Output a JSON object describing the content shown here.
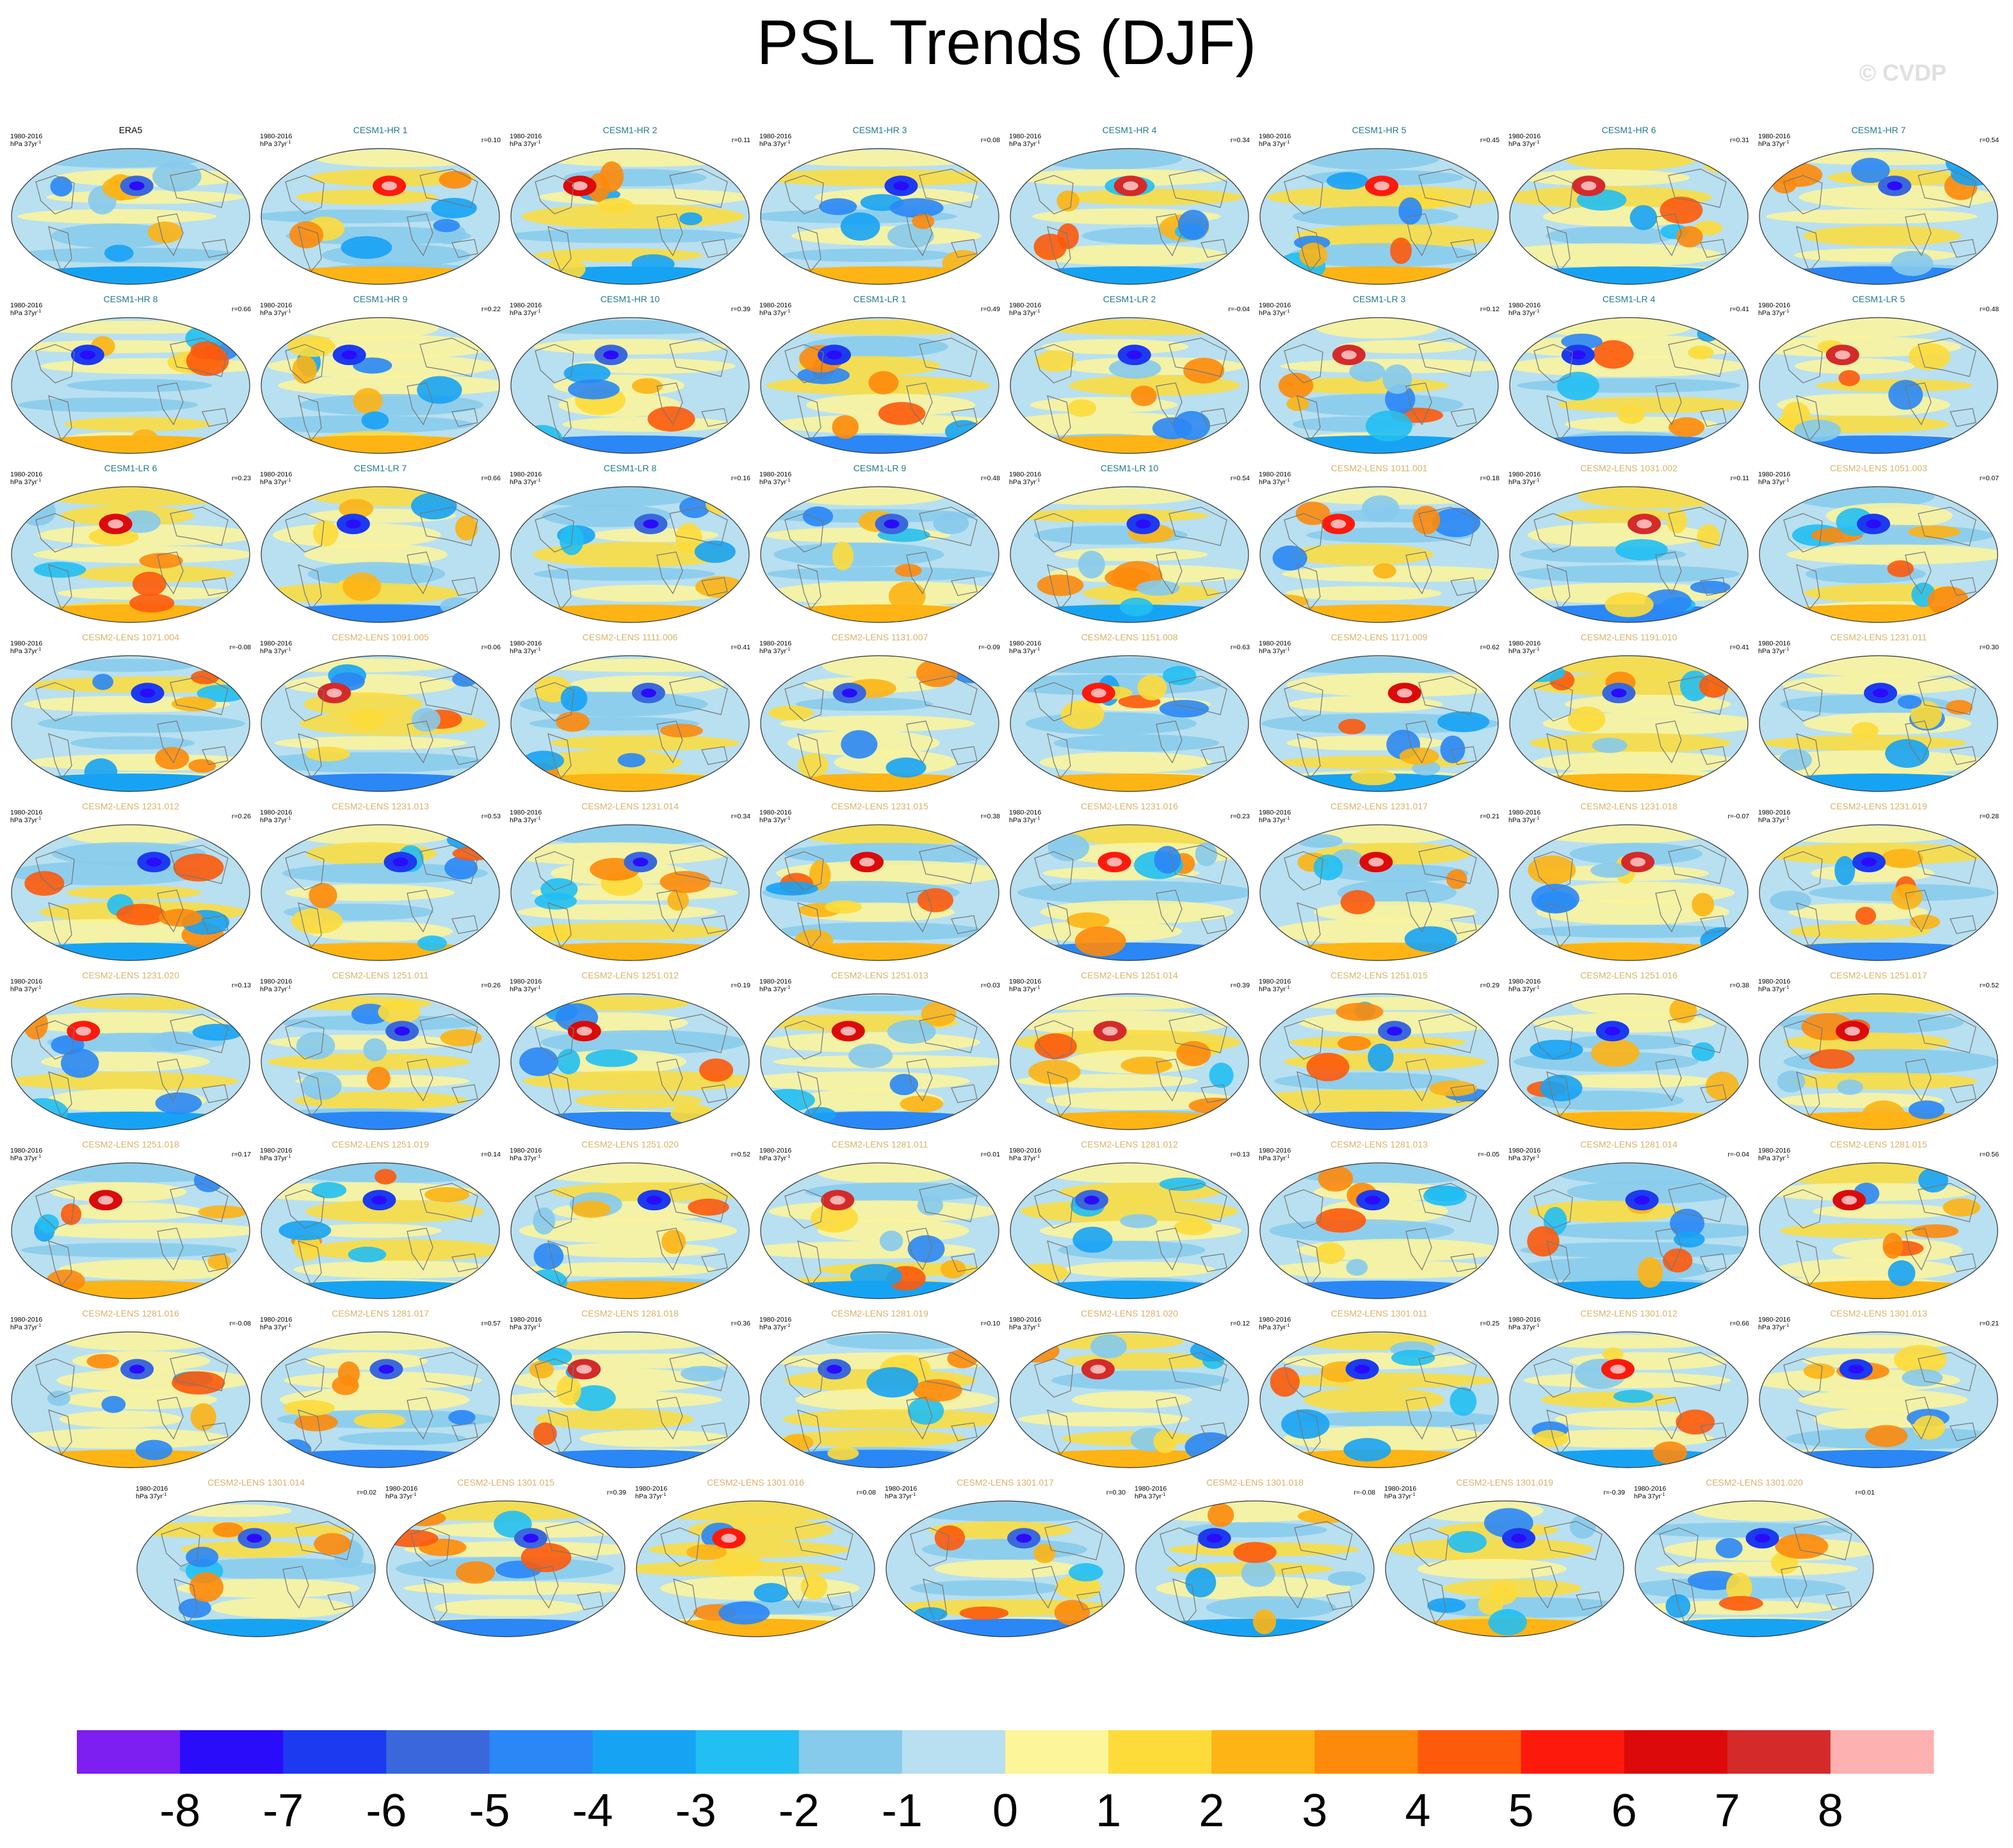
{
  "title": "PSL Trends (DJF)",
  "watermark": "© CVDP",
  "colors": {
    "obs_title": "#000000",
    "hr_lr_title": "#1f7a8c",
    "lens_title": "#d9b26a",
    "ocean": "#cfe8f5",
    "coast": "#777777"
  },
  "chart_data": {
    "type": "map-panel-grid",
    "variable": "PSL",
    "season": "DJF",
    "period": "1980-2016",
    "units_line": "hPa 37yr",
    "units_superscript": "-1",
    "panels": [
      {
        "name": "ERA5",
        "group": "obs",
        "r": null
      },
      {
        "name": "CESM1-HR 1",
        "group": "hr",
        "r": "0.10"
      },
      {
        "name": "CESM1-HR 2",
        "group": "hr",
        "r": "0.11"
      },
      {
        "name": "CESM1-HR 3",
        "group": "hr",
        "r": "0.08"
      },
      {
        "name": "CESM1-HR 4",
        "group": "hr",
        "r": "0.34"
      },
      {
        "name": "CESM1-HR 5",
        "group": "hr",
        "r": "0.45"
      },
      {
        "name": "CESM1-HR 6",
        "group": "hr",
        "r": "0.31"
      },
      {
        "name": "CESM1-HR 7",
        "group": "hr",
        "r": "0.54"
      },
      {
        "name": "CESM1-HR 8",
        "group": "hr",
        "r": "0.66"
      },
      {
        "name": "CESM1-HR 9",
        "group": "hr",
        "r": "0.22"
      },
      {
        "name": "CESM1-HR 10",
        "group": "hr",
        "r": "0.39"
      },
      {
        "name": "CESM1-LR 1",
        "group": "lr",
        "r": "0.49"
      },
      {
        "name": "CESM1-LR 2",
        "group": "lr",
        "r": "-0.04"
      },
      {
        "name": "CESM1-LR 3",
        "group": "lr",
        "r": "0.12"
      },
      {
        "name": "CESM1-LR 4",
        "group": "lr",
        "r": "0.41"
      },
      {
        "name": "CESM1-LR 5",
        "group": "lr",
        "r": "0.48"
      },
      {
        "name": "CESM1-LR 6",
        "group": "lr",
        "r": "0.23"
      },
      {
        "name": "CESM1-LR 7",
        "group": "lr",
        "r": "0.66"
      },
      {
        "name": "CESM1-LR 8",
        "group": "lr",
        "r": "0.16"
      },
      {
        "name": "CESM1-LR 9",
        "group": "lr",
        "r": "0.48"
      },
      {
        "name": "CESM1-LR 10",
        "group": "lr",
        "r": "0.54"
      },
      {
        "name": "CESM2-LENS 1011.001",
        "group": "lens",
        "r": "0.18"
      },
      {
        "name": "CESM2-LENS 1031.002",
        "group": "lens",
        "r": "0.11"
      },
      {
        "name": "CESM2-LENS 1051.003",
        "group": "lens",
        "r": "0.07"
      },
      {
        "name": "CESM2-LENS 1071.004",
        "group": "lens",
        "r": "-0.08"
      },
      {
        "name": "CESM2-LENS 1091.005",
        "group": "lens",
        "r": "0.06"
      },
      {
        "name": "CESM2-LENS 1111.006",
        "group": "lens",
        "r": "0.41"
      },
      {
        "name": "CESM2-LENS 1131.007",
        "group": "lens",
        "r": "-0.09"
      },
      {
        "name": "CESM2-LENS 1151.008",
        "group": "lens",
        "r": "0.63"
      },
      {
        "name": "CESM2-LENS 1171.009",
        "group": "lens",
        "r": "0.62"
      },
      {
        "name": "CESM2-LENS 1191.010",
        "group": "lens",
        "r": "0.41"
      },
      {
        "name": "CESM2-LENS 1231.011",
        "group": "lens",
        "r": "0.30"
      },
      {
        "name": "CESM2-LENS 1231.012",
        "group": "lens",
        "r": "0.26"
      },
      {
        "name": "CESM2-LENS 1231.013",
        "group": "lens",
        "r": "0.53"
      },
      {
        "name": "CESM2-LENS 1231.014",
        "group": "lens",
        "r": "0.34"
      },
      {
        "name": "CESM2-LENS 1231.015",
        "group": "lens",
        "r": "0.38"
      },
      {
        "name": "CESM2-LENS 1231.016",
        "group": "lens",
        "r": "0.23"
      },
      {
        "name": "CESM2-LENS 1231.017",
        "group": "lens",
        "r": "0.21"
      },
      {
        "name": "CESM2-LENS 1231.018",
        "group": "lens",
        "r": "-0.07"
      },
      {
        "name": "CESM2-LENS 1231.019",
        "group": "lens",
        "r": "0.28"
      },
      {
        "name": "CESM2-LENS 1231.020",
        "group": "lens",
        "r": "0.13"
      },
      {
        "name": "CESM2-LENS 1251.011",
        "group": "lens",
        "r": "0.26"
      },
      {
        "name": "CESM2-LENS 1251.012",
        "group": "lens",
        "r": "0.19"
      },
      {
        "name": "CESM2-LENS 1251.013",
        "group": "lens",
        "r": "0.03"
      },
      {
        "name": "CESM2-LENS 1251.014",
        "group": "lens",
        "r": "0.39"
      },
      {
        "name": "CESM2-LENS 1251.015",
        "group": "lens",
        "r": "0.29"
      },
      {
        "name": "CESM2-LENS 1251.016",
        "group": "lens",
        "r": "0.38"
      },
      {
        "name": "CESM2-LENS 1251.017",
        "group": "lens",
        "r": "0.52"
      },
      {
        "name": "CESM2-LENS 1251.018",
        "group": "lens",
        "r": "0.17"
      },
      {
        "name": "CESM2-LENS 1251.019",
        "group": "lens",
        "r": "0.14"
      },
      {
        "name": "CESM2-LENS 1251.020",
        "group": "lens",
        "r": "0.52"
      },
      {
        "name": "CESM2-LENS 1281.011",
        "group": "lens",
        "r": "0.01"
      },
      {
        "name": "CESM2-LENS 1281.012",
        "group": "lens",
        "r": "0.13"
      },
      {
        "name": "CESM2-LENS 1281.013",
        "group": "lens",
        "r": "-0.05"
      },
      {
        "name": "CESM2-LENS 1281.014",
        "group": "lens",
        "r": "-0.04"
      },
      {
        "name": "CESM2-LENS 1281.015",
        "group": "lens",
        "r": "0.56"
      },
      {
        "name": "CESM2-LENS 1281.016",
        "group": "lens",
        "r": "-0.08"
      },
      {
        "name": "CESM2-LENS 1281.017",
        "group": "lens",
        "r": "0.57"
      },
      {
        "name": "CESM2-LENS 1281.018",
        "group": "lens",
        "r": "0.36"
      },
      {
        "name": "CESM2-LENS 1281.019",
        "group": "lens",
        "r": "0.10"
      },
      {
        "name": "CESM2-LENS 1281.020",
        "group": "lens",
        "r": "0.12"
      },
      {
        "name": "CESM2-LENS 1301.011",
        "group": "lens",
        "r": "0.25"
      },
      {
        "name": "CESM2-LENS 1301.012",
        "group": "lens",
        "r": "0.66"
      },
      {
        "name": "CESM2-LENS 1301.013",
        "group": "lens",
        "r": "0.21"
      },
      {
        "name": "CESM2-LENS 1301.014",
        "group": "lens",
        "r": "0.02"
      },
      {
        "name": "CESM2-LENS 1301.015",
        "group": "lens",
        "r": "0.39"
      },
      {
        "name": "CESM2-LENS 1301.016",
        "group": "lens",
        "r": "0.08"
      },
      {
        "name": "CESM2-LENS 1301.017",
        "group": "lens",
        "r": "0.30"
      },
      {
        "name": "CESM2-LENS 1301.018",
        "group": "lens",
        "r": "-0.08"
      },
      {
        "name": "CESM2-LENS 1301.019",
        "group": "lens",
        "r": "-0.39"
      },
      {
        "name": "CESM2-LENS 1301.020",
        "group": "lens",
        "r": "0.01"
      }
    ],
    "colorbar": {
      "levels": [
        -8,
        -7,
        -6,
        -5,
        -4,
        -3,
        -2,
        -1,
        0,
        1,
        2,
        3,
        4,
        5,
        6,
        7,
        8
      ],
      "tick_labels": [
        "-8",
        "-7",
        "-6",
        "-5",
        "-4",
        "-3",
        "-2",
        "-1",
        "0",
        "1",
        "2",
        "3",
        "4",
        "5",
        "6",
        "7",
        "8"
      ],
      "colors": [
        "#7d1ff0",
        "#2a0cfb",
        "#1c3af0",
        "#3a68dc",
        "#2a87f5",
        "#17a3f4",
        "#22bff2",
        "#86caec",
        "#b8e0f0",
        "#fdf59a",
        "#fddc3a",
        "#fdb414",
        "#fd8a0b",
        "#fd5a0b",
        "#fd1a0d",
        "#dc0a0a",
        "#d42a2a",
        "#fdb1b1"
      ]
    }
  }
}
